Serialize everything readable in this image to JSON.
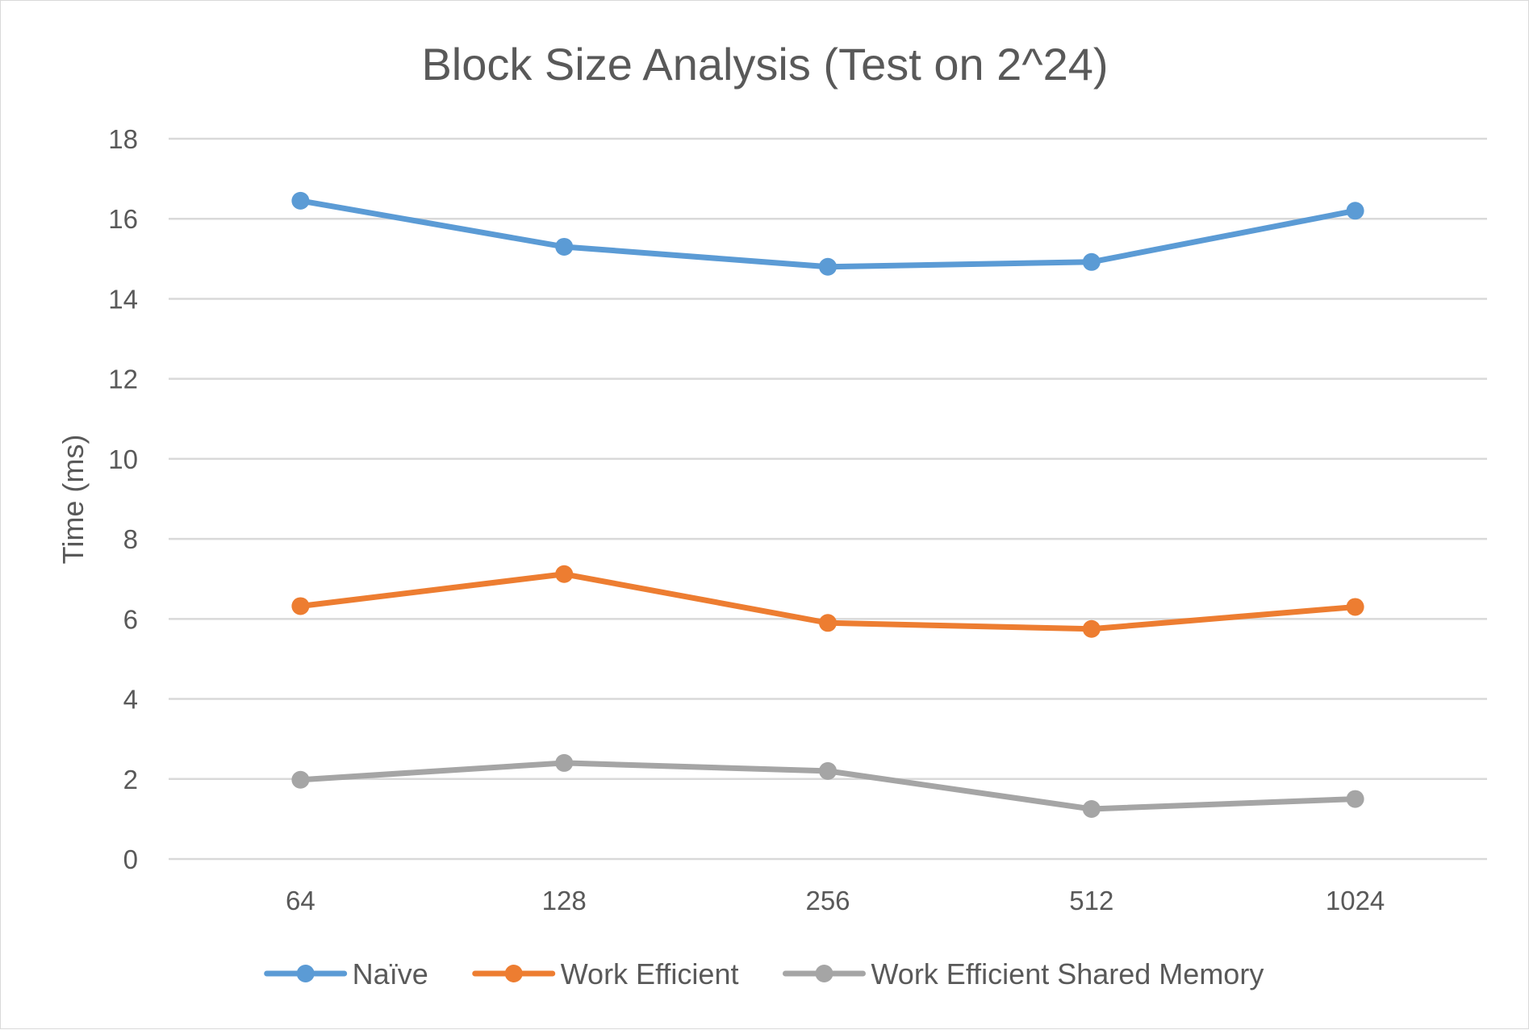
{
  "chart_data": {
    "type": "line",
    "title": "Block Size Analysis (Test on 2^24)",
    "xlabel": "",
    "ylabel": "Time (ms)",
    "categories": [
      "64",
      "128",
      "256",
      "512",
      "1024"
    ],
    "ylim": [
      0,
      18
    ],
    "yticks": [
      "0",
      "2",
      "4",
      "6",
      "8",
      "10",
      "12",
      "14",
      "16",
      "18"
    ],
    "grid": true,
    "legend_position": "bottom",
    "series": [
      {
        "name": "Naïve",
        "color": "#5B9BD5",
        "values": [
          16.45,
          15.3,
          14.8,
          14.92,
          16.2
        ]
      },
      {
        "name": "Work Efficient",
        "color": "#ED7D31",
        "values": [
          6.32,
          7.12,
          5.9,
          5.75,
          6.3
        ]
      },
      {
        "name": "Work Efficient Shared Memory",
        "color": "#A5A5A5",
        "values": [
          1.98,
          2.4,
          2.2,
          1.25,
          1.5
        ]
      }
    ]
  }
}
